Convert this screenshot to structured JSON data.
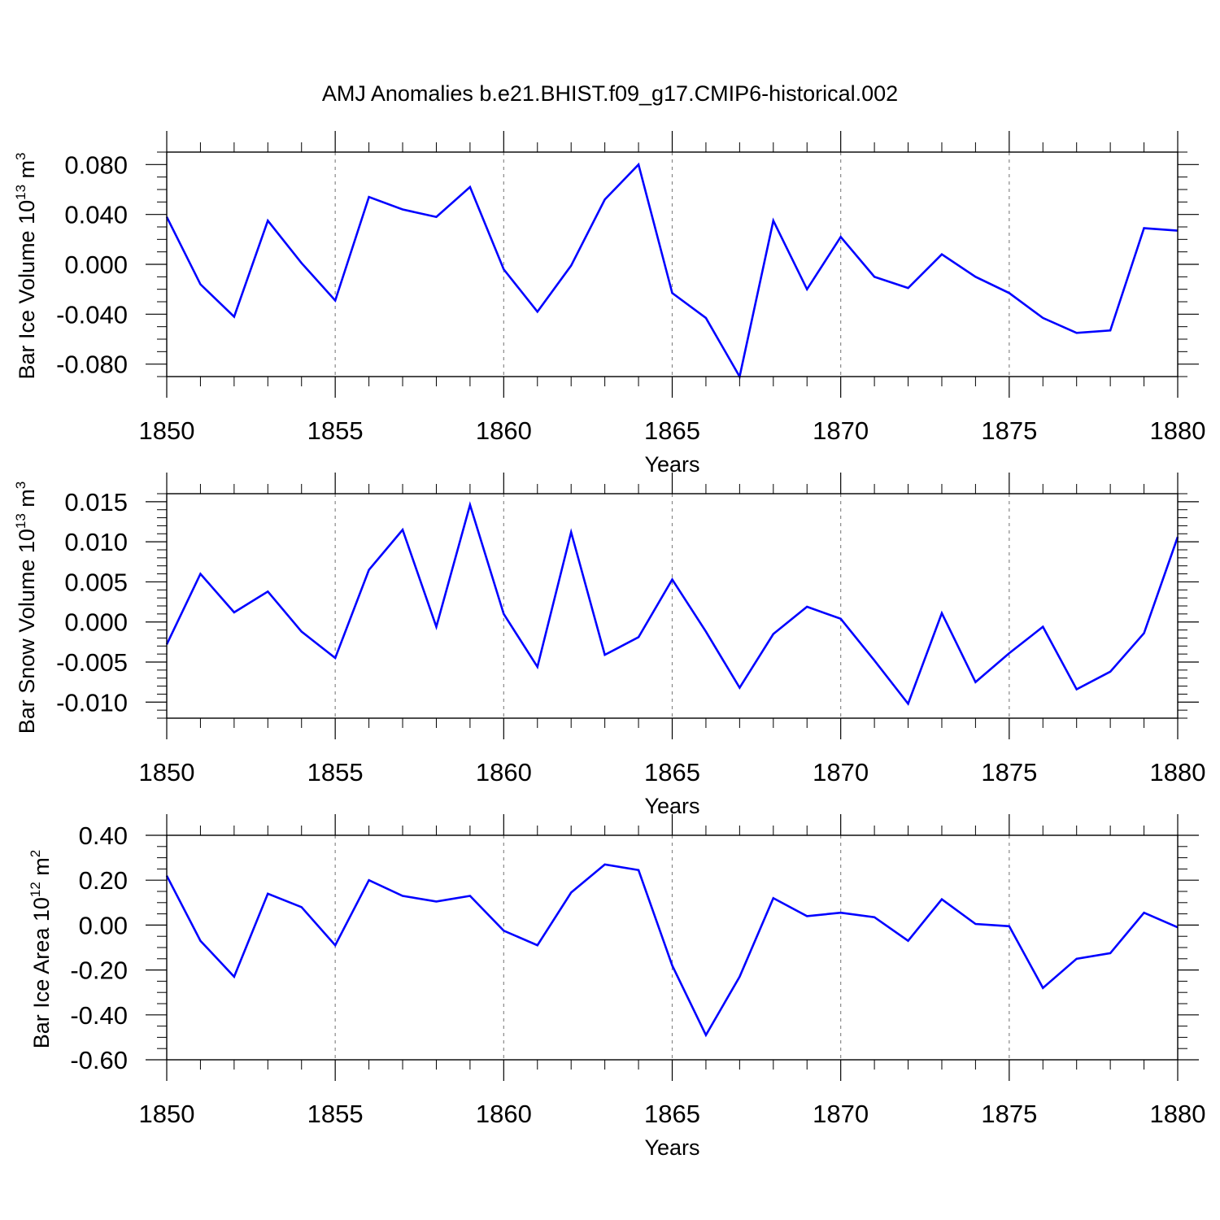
{
  "title": "AMJ Anomalies b.e21.BHIST.f09_g17.CMIP6-historical.002",
  "chart_data": [
    {
      "type": "line",
      "ylabel": "Bar Ice Volume 10",
      "ylabel_exp": "13",
      "ylabel_unit": " m",
      "ylabel_unit_exp": "3",
      "xlabel": "Years",
      "xlim": [
        1850,
        1880
      ],
      "ylim": [
        -0.09,
        0.09
      ],
      "yticks": [
        -0.08,
        -0.04,
        0.0,
        0.04,
        0.08
      ],
      "ytick_labels": [
        "-0.080",
        "-0.040",
        "0.000",
        "0.040",
        "0.080"
      ],
      "ytick_minor_step": 0.01,
      "xticks": [
        1850,
        1855,
        1860,
        1865,
        1870,
        1875,
        1880
      ],
      "xtick_labels": [
        "1850",
        "1855",
        "1860",
        "1865",
        "1870",
        "1875",
        "1880"
      ],
      "gridlines_x": [
        1855,
        1860,
        1865,
        1870,
        1875
      ],
      "color": "#0000ff",
      "x": [
        1850,
        1851,
        1852,
        1853,
        1854,
        1855,
        1856,
        1857,
        1858,
        1859,
        1860,
        1861,
        1862,
        1863,
        1864,
        1865,
        1866,
        1867,
        1868,
        1869,
        1870,
        1871,
        1872,
        1873,
        1874,
        1875,
        1876,
        1877,
        1878,
        1879,
        1880
      ],
      "values": [
        0.038,
        -0.016,
        -0.042,
        0.035,
        0.001,
        -0.029,
        0.054,
        0.044,
        0.038,
        0.062,
        -0.004,
        -0.038,
        -0.001,
        0.052,
        0.08,
        -0.023,
        -0.043,
        -0.09,
        0.035,
        -0.02,
        0.022,
        -0.01,
        -0.019,
        0.008,
        -0.01,
        -0.023,
        -0.043,
        -0.055,
        -0.053,
        0.029,
        0.027
      ]
    },
    {
      "type": "line",
      "ylabel": "Bar Snow Volume 10",
      "ylabel_exp": "13",
      "ylabel_unit": " m",
      "ylabel_unit_exp": "3",
      "xlabel": "Years",
      "xlim": [
        1850,
        1880
      ],
      "ylim": [
        -0.012,
        0.016
      ],
      "yticks": [
        -0.01,
        -0.005,
        0.0,
        0.005,
        0.01,
        0.015
      ],
      "ytick_labels": [
        "-0.010",
        "-0.005",
        "0.000",
        "0.005",
        "0.010",
        "0.015"
      ],
      "ytick_minor_step": 0.001,
      "xticks": [
        1850,
        1855,
        1860,
        1865,
        1870,
        1875,
        1880
      ],
      "xtick_labels": [
        "1850",
        "1855",
        "1860",
        "1865",
        "1870",
        "1875",
        "1880"
      ],
      "gridlines_x": [
        1855,
        1860,
        1865,
        1870,
        1875
      ],
      "color": "#0000ff",
      "x": [
        1850,
        1851,
        1852,
        1853,
        1854,
        1855,
        1856,
        1857,
        1858,
        1859,
        1860,
        1861,
        1862,
        1863,
        1864,
        1865,
        1866,
        1867,
        1868,
        1869,
        1870,
        1871,
        1872,
        1873,
        1874,
        1875,
        1876,
        1877,
        1878,
        1879,
        1880
      ],
      "values": [
        -0.0028,
        0.006,
        0.0012,
        0.0038,
        -0.0012,
        -0.0045,
        0.0065,
        0.0115,
        -0.0006,
        0.0146,
        0.001,
        -0.0056,
        0.0112,
        -0.0041,
        -0.0019,
        0.0053,
        -0.0012,
        -0.0082,
        -0.0015,
        0.0019,
        0.0004,
        -0.0048,
        -0.0102,
        0.0011,
        -0.0075,
        -0.0039,
        -0.0006,
        -0.0084,
        -0.0062,
        -0.0014,
        0.0106
      ]
    },
    {
      "type": "line",
      "ylabel": "Bar Ice Area 10",
      "ylabel_exp": "12",
      "ylabel_unit": " m",
      "ylabel_unit_exp": "2",
      "xlabel": "Years",
      "xlim": [
        1850,
        1880
      ],
      "ylim": [
        -0.6,
        0.4
      ],
      "yticks": [
        -0.6,
        -0.4,
        -0.2,
        0.0,
        0.2,
        0.4
      ],
      "ytick_labels": [
        "-0.60",
        "-0.40",
        "-0.20",
        "0.00",
        "0.20",
        "0.40"
      ],
      "ytick_minor_step": 0.05,
      "xticks": [
        1850,
        1855,
        1860,
        1865,
        1870,
        1875,
        1880
      ],
      "xtick_labels": [
        "1850",
        "1855",
        "1860",
        "1865",
        "1870",
        "1875",
        "1880"
      ],
      "gridlines_x": [
        1855,
        1860,
        1865,
        1870,
        1875
      ],
      "color": "#0000ff",
      "x": [
        1850,
        1851,
        1852,
        1853,
        1854,
        1855,
        1856,
        1857,
        1858,
        1859,
        1860,
        1861,
        1862,
        1863,
        1864,
        1865,
        1866,
        1867,
        1868,
        1869,
        1870,
        1871,
        1872,
        1873,
        1874,
        1875,
        1876,
        1877,
        1878,
        1879,
        1880
      ],
      "values": [
        0.22,
        -0.07,
        -0.23,
        0.14,
        0.08,
        -0.09,
        0.2,
        0.13,
        0.105,
        0.13,
        -0.025,
        -0.09,
        0.145,
        0.27,
        0.245,
        -0.18,
        -0.49,
        -0.23,
        0.12,
        0.04,
        0.055,
        0.035,
        -0.07,
        0.115,
        0.005,
        -0.005,
        -0.28,
        -0.15,
        -0.125,
        0.055,
        -0.01
      ]
    }
  ]
}
